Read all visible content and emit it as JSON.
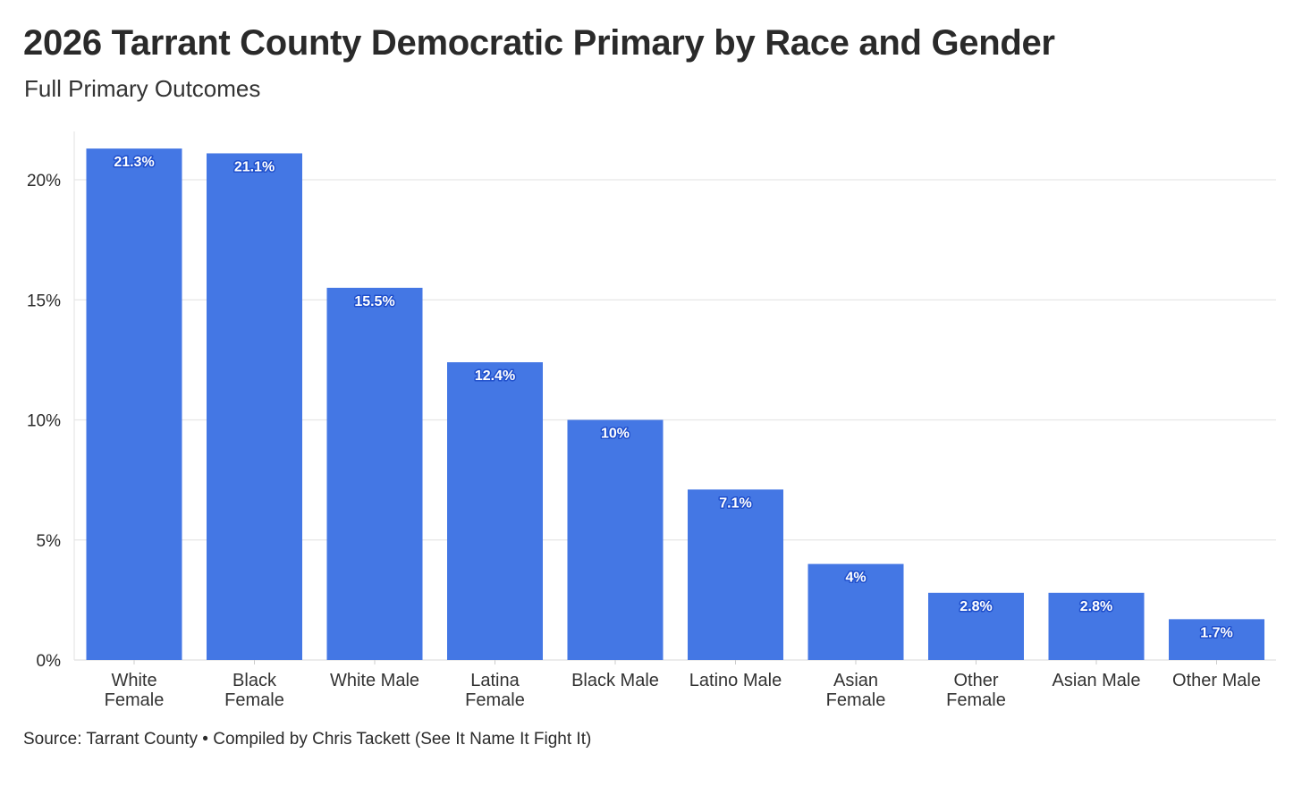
{
  "header": {
    "title": "2026 Tarrant County Democratic Primary by Race and Gender",
    "subtitle": "Full Primary Outcomes"
  },
  "footer": {
    "source": "Source: Tarrant County • Compiled by Chris Tackett (See It Name It Fight It)"
  },
  "chart_data": {
    "type": "bar",
    "title": "2026 Tarrant County Democratic Primary by Race and Gender",
    "subtitle": "Full Primary Outcomes",
    "categories": [
      [
        "White",
        "Female"
      ],
      [
        "Black",
        "Female"
      ],
      [
        "White Male"
      ],
      [
        "Latina",
        "Female"
      ],
      [
        "Black Male"
      ],
      [
        "Latino Male"
      ],
      [
        "Asian",
        "Female"
      ],
      [
        "Other",
        "Female"
      ],
      [
        "Asian Male"
      ],
      [
        "Other Male"
      ]
    ],
    "values": [
      21.3,
      21.1,
      15.5,
      12.4,
      10,
      7.1,
      4,
      2.8,
      2.8,
      1.7
    ],
    "data_labels": [
      "21.3%",
      "21.1%",
      "15.5%",
      "12.4%",
      "10%",
      "7.1%",
      "4%",
      "2.8%",
      "2.8%",
      "1.7%"
    ],
    "ylim": [
      0,
      22
    ],
    "yticks": [
      0,
      5,
      10,
      15,
      20
    ],
    "ytick_labels": [
      "0%",
      "5%",
      "10%",
      "15%",
      "20%"
    ],
    "xlabel": "",
    "ylabel": "",
    "grid": true,
    "legend": "none",
    "bar_color": "#4477e4",
    "label_color": "#ffffff",
    "label_outline_color": "#1f4fcc",
    "grid_color": "#e6e6e6"
  }
}
